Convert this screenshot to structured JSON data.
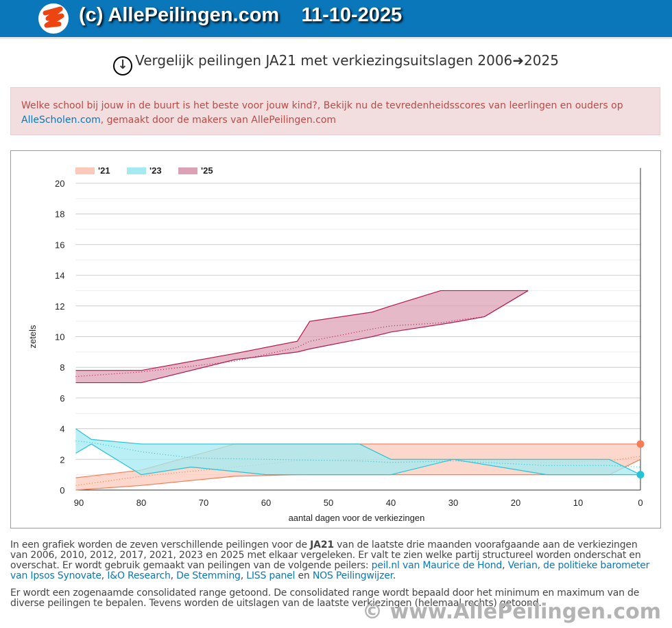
{
  "header": {
    "title": "(c) AllePeilingen.com",
    "date": "11-10-2025"
  },
  "page_title": "Vergelijk peilingen JA21 met verkiezingsuitslagen 2006➜2025",
  "ad": {
    "text1": "Welke school bij jouw in de buurt is het beste voor jouw kind?, Bekijk nu de tevredenheidsscores van leerlingen en ouders op ",
    "link": "AlleScholen.com",
    "text2": ", gemaakt door de makers van AllePeilingen.com"
  },
  "chart_data": {
    "type": "area",
    "xlabel": "aantal dagen voor de verkiezingen",
    "ylabel": "zetels",
    "xlim": [
      90.5,
      0
    ],
    "ylim": [
      0,
      21
    ],
    "xticks": [
      "90",
      "80",
      "70",
      "60",
      "50",
      "40",
      "30",
      "20",
      "10",
      "0"
    ],
    "yticks": [
      "0",
      "2",
      "4",
      "6",
      "8",
      "10",
      "12",
      "14",
      "16",
      "18",
      "20"
    ],
    "legend": "top-left",
    "series": [
      {
        "name": "'21",
        "color": "#f47c56",
        "fill": "#fbc9b9",
        "result": 3,
        "x": [
          90.5,
          80,
          65,
          55,
          45,
          30,
          15,
          5,
          0
        ],
        "min": [
          0,
          0.3,
          0.9,
          1,
          1,
          1,
          1,
          1,
          2
        ],
        "max": [
          0.8,
          1.3,
          3,
          3,
          3,
          3,
          3,
          3,
          3
        ],
        "avg": [
          0.3,
          0.9,
          1.5,
          1.9,
          2,
          2,
          1.8,
          1.9,
          2.2
        ]
      },
      {
        "name": "'23",
        "color": "#22c4d6",
        "fill": "#a3ebf1",
        "result": 1,
        "x": [
          90.5,
          88,
          80,
          72,
          60,
          45,
          40,
          30,
          15,
          5,
          0
        ],
        "min": [
          2.4,
          3,
          1,
          1.5,
          1,
          1,
          1,
          2,
          1,
          1,
          1
        ],
        "max": [
          4,
          3.3,
          3,
          3,
          3,
          3,
          2,
          2,
          2,
          2,
          1
        ],
        "avg": [
          3.2,
          3.1,
          2.5,
          2.1,
          2,
          1.9,
          1.8,
          1.9,
          1.6,
          1.6,
          1.5
        ]
      },
      {
        "name": "'25",
        "color": "#b8174b",
        "fill": "#dca1b5",
        "result": null,
        "x": [
          90.5,
          80,
          65,
          55,
          53,
          43,
          40,
          32,
          29,
          25,
          18
        ],
        "min": [
          7,
          7,
          8.5,
          9,
          9.2,
          10,
          10.3,
          10.8,
          11,
          11.3,
          13
        ],
        "max": [
          7.8,
          7.8,
          8.9,
          9.7,
          11,
          11.6,
          12,
          13,
          13,
          13,
          13
        ],
        "avg": [
          7.4,
          7.7,
          8.4,
          9.3,
          9.7,
          10.5,
          10.7,
          10.9,
          11.1,
          11.3,
          13
        ]
      }
    ]
  },
  "desc": {
    "p1a": "In een grafiek worden de zeven verschillende peilingen voor de ",
    "party": "JA21",
    "p1b": " van de laatste drie maanden voorafgaande aan de verkiezingen van 2006, 2010, 2012, 2017, 2021, 2023 en 2025 met elkaar vergeleken. Er valt te zien welke partij structureel worden onderschat en overschat. Er wordt gebruik gemaakt van peilingen van de volgende peilers: ",
    "links": [
      "peil.nl van Maurice de Hond",
      "Verian, de politieke barometer van Ipsos Synovate",
      "I&O Research",
      "De Stemming",
      "LISS panel",
      "NOS Peilingwijzer"
    ],
    "sep1": ", ",
    "and": " en ",
    "end": ".",
    "p2": "Er wordt een zogenaamde consolidated range getoond. De consolidated range wordt bepaald door het minimum en maximum van de diverse peilingen te bepalen. Tevens worden de uitslagen van de laatste verkiezingen (helemaal rechts) getoond."
  },
  "footer": "© www.AllePeilingen.com"
}
